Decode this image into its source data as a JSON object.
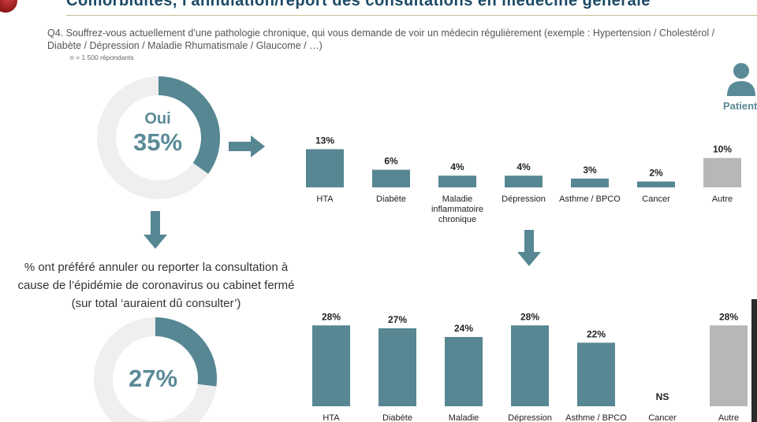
{
  "header": {
    "title": "Comorbidités, l'annulation/report des consultations en médecine générale"
  },
  "question": {
    "line1": "Q4. Souffrez-vous actuellement d’une pathologie chronique, qui vous demande de voir un médecin régulièrement (exemple : Hypertension / Cholestérol /",
    "line2": "Diabète / Dépression / Maladie Rhumatismale / Glaucome / …)",
    "respondents": "n = 1 500 répondants"
  },
  "patient": {
    "label": "Patients",
    "icon": "person-icon"
  },
  "donut_top": {
    "label": "Oui",
    "value_label": "35%",
    "value": 35
  },
  "middle_text": {
    "line1": "% ont préféré annuler ou reporter la consultation à",
    "line2": "cause de l’épidémie de coronavirus ou cabinet fermé",
    "line3": "(sur total ‘auraient dû consulter’)"
  },
  "donut_bottom": {
    "value_label": "27%",
    "value": 27
  },
  "colors": {
    "teal": "#568793",
    "grey": "#b7b7b7",
    "donut_bg": "#efefef"
  },
  "chart_data": [
    {
      "type": "bar",
      "categories": [
        "HTA",
        "Diabète",
        "Maladie inflammatoire chronique",
        "Dépression",
        "Asthme / BPCO",
        "Cancer",
        "Autre"
      ],
      "category_lines": [
        [
          "HTA"
        ],
        [
          "Diabète"
        ],
        [
          "Maladie",
          "inflammatoire",
          "chronique"
        ],
        [
          "Dépression"
        ],
        [
          "Asthme / BPCO"
        ],
        [
          "Cancer"
        ],
        [
          "Autre"
        ]
      ],
      "values": [
        13,
        6,
        4,
        4,
        3,
        2,
        10
      ],
      "value_labels": [
        "13%",
        "6%",
        "4%",
        "4%",
        "3%",
        "2%",
        "10%"
      ],
      "highlight_category": "Autre",
      "ylim": [
        0,
        15
      ]
    },
    {
      "type": "bar",
      "categories": [
        "HTA",
        "Diabète",
        "Maladie",
        "Dépression",
        "Asthme / BPCO",
        "Cancer",
        "Autre"
      ],
      "category_lines": [
        [
          "HTA"
        ],
        [
          "Diabète"
        ],
        [
          "Maladie"
        ],
        [
          "Dépression"
        ],
        [
          "Asthme / BPCO"
        ],
        [
          "Cancer"
        ],
        [
          "Autre"
        ]
      ],
      "values": [
        28,
        27,
        24,
        28,
        22,
        null,
        28
      ],
      "value_labels": [
        "28%",
        "27%",
        "24%",
        "28%",
        "22%",
        "NS",
        "28%"
      ],
      "highlight_category": "Autre",
      "ylim": [
        0,
        30
      ]
    }
  ]
}
